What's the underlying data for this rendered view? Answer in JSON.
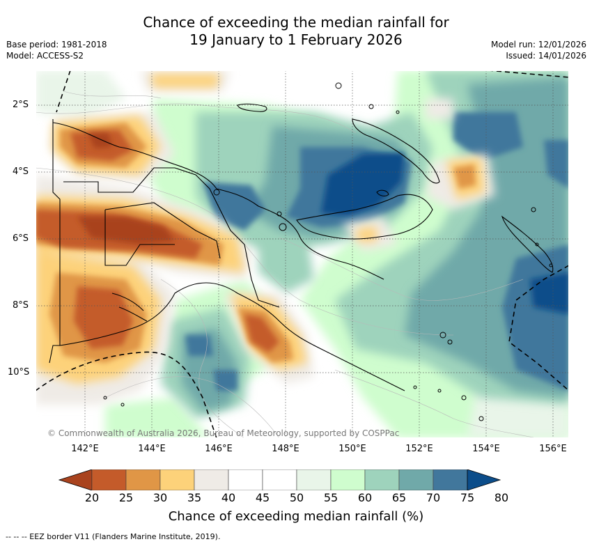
{
  "title": {
    "line1": "Chance of exceeding the median rainfall for",
    "line2": "19 January to 1 February 2026"
  },
  "meta": {
    "base_period": "Base period: 1981-2018",
    "model": "Model: ACCESS-S2",
    "model_run": "Model run: 12/01/2026",
    "issued": "Issued: 14/01/2026"
  },
  "map": {
    "lat_labels": [
      "2°S",
      "4°S",
      "6°S",
      "8°S",
      "10°S"
    ],
    "lon_labels": [
      "142°E",
      "144°E",
      "146°E",
      "148°E",
      "150°E",
      "152°E",
      "154°E",
      "156°E"
    ],
    "copyright": "© Commonwealth of Australia 2026, Bureau of Meteorology, supported by COSPPac"
  },
  "colorbar": {
    "ticks": [
      "20",
      "25",
      "30",
      "35",
      "40",
      "45",
      "50",
      "55",
      "60",
      "65",
      "70",
      "75",
      "80"
    ],
    "colors": [
      "#a9431e",
      "#c45b2a",
      "#e09646",
      "#fdd27a",
      "#efebe6",
      "#ffffff",
      "#ffffff",
      "#e9f5e9",
      "#cffdce",
      "#9ed3bc",
      "#70a9a9",
      "#41779c",
      "#0c4d8a"
    ],
    "title": "Chance of exceeding median rainfall (%)"
  },
  "legend": {
    "eez": "--  --  -- EEZ border V11 (Flanders Marine Institute, 2019)."
  }
}
